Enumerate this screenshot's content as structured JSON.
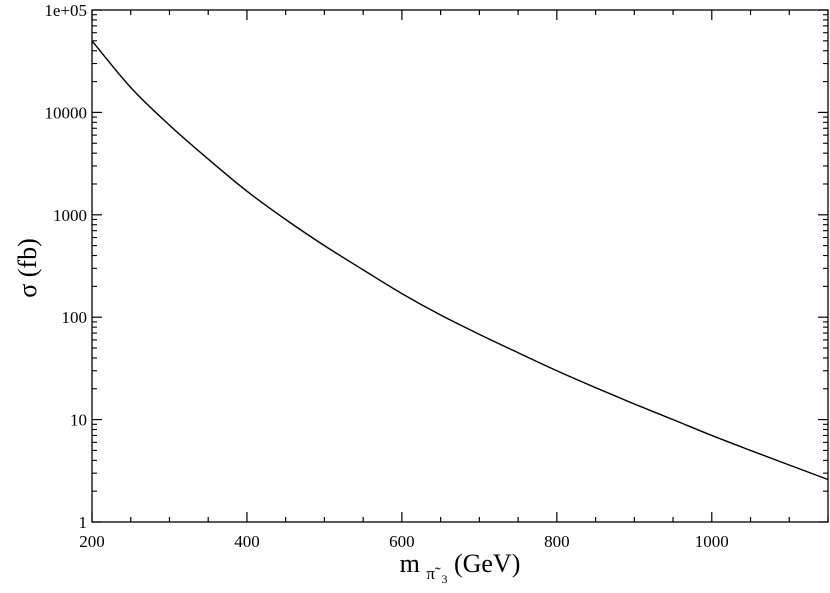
{
  "chart_data": {
    "type": "line",
    "xlabel": {
      "main": "m",
      "subscript": "π̃",
      "sub_subscript": "3",
      "unit": "(GeV)"
    },
    "ylabel": "σ (fb)",
    "xlim": [
      200,
      1150
    ],
    "ylim": [
      1,
      100000
    ],
    "yscale": "log",
    "grid": false,
    "x_ticks": [
      200,
      400,
      600,
      800,
      1000
    ],
    "x_tick_labels": [
      "200",
      "400",
      "600",
      "800",
      "1000"
    ],
    "y_ticks": [
      1,
      10,
      100,
      1000,
      10000,
      100000
    ],
    "y_tick_labels": [
      "1",
      "10",
      "100",
      "1000",
      "10000",
      "1e+05"
    ],
    "series": [
      {
        "color": "#000000",
        "x": [
          200,
          250,
          300,
          350,
          400,
          450,
          500,
          550,
          600,
          650,
          700,
          750,
          800,
          850,
          900,
          950,
          1000,
          1050,
          1100,
          1150
        ],
        "y": [
          50000,
          17500,
          7500,
          3500,
          1700,
          900,
          500,
          290,
          170,
          105,
          68,
          45,
          30,
          20.5,
          14.2,
          10,
          7,
          5,
          3.6,
          2.6
        ]
      }
    ]
  }
}
